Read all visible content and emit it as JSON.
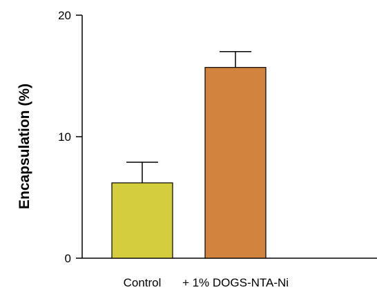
{
  "chart_data": {
    "type": "bar",
    "title": "",
    "xlabel": "",
    "ylabel": "Encapsulation (%)",
    "ylim": [
      0,
      20
    ],
    "yticks": [
      0,
      10,
      20
    ],
    "grid": false,
    "categories": [
      "Control",
      "+ 1% DOGS-NTA-Ni"
    ],
    "values": [
      6.2,
      15.7
    ],
    "errors": [
      1.7,
      1.3
    ],
    "colors": [
      "#d4cd3e",
      "#d2843e"
    ]
  }
}
